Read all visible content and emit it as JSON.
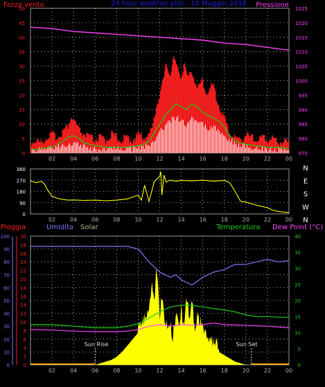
{
  "header": {
    "title": "24 hour weather plot - 10 Maggio 2018",
    "left_label": "Forza vento",
    "right_label": "Pressione"
  },
  "colors": {
    "frame": "#9a9a9a",
    "grid": "#d8d8d8",
    "red": "#ff2020",
    "green": "#18d018",
    "white": "#ffffff",
    "magenta": "#ff40ff",
    "yellow": "#ffff00",
    "blue": "#7a7aff",
    "olive": "#b4b48c",
    "title_blue": "#2020e0",
    "axis_text": "#b0b0b0",
    "sun_text": "#e0e0e0",
    "night_orange": "#ffb000"
  },
  "time_axis": {
    "start_hour": 0,
    "end_hour": 24,
    "tick_labels": [
      "02",
      "04",
      "06",
      "08",
      "10",
      "12",
      "14",
      "16",
      "18",
      "20",
      "22",
      "00"
    ]
  },
  "chart_data": [
    {
      "type": "line",
      "title": "24 hour weather plot - 10 Maggio 2018",
      "x_unit": "hour",
      "left_axis": {
        "label": "Forza vento",
        "ylim": [
          0,
          50
        ],
        "ticks": [
          0,
          5,
          10,
          15,
          20,
          25,
          30,
          35,
          40,
          45,
          50
        ]
      },
      "right_axis": {
        "label": "Pressione",
        "ylim": [
          975,
          1025
        ],
        "ticks": [
          975,
          980,
          985,
          990,
          995,
          1000,
          1005,
          1010,
          1015,
          1020,
          1025
        ]
      },
      "grid": true,
      "series": [
        {
          "name": "Pressione",
          "axis": "right",
          "color": "magenta",
          "x": [
            0,
            2,
            4,
            6,
            8,
            10,
            12,
            14,
            16,
            18,
            20,
            22,
            24
          ],
          "y": [
            1018.5,
            1018.0,
            1017.0,
            1016.5,
            1016.0,
            1015.5,
            1015.0,
            1014.5,
            1014.0,
            1013.0,
            1012.5,
            1011.5,
            1010.5
          ]
        },
        {
          "name": "gust",
          "axis": "left",
          "color": "red",
          "x": [
            0,
            0.5,
            1,
            1.5,
            2,
            2.5,
            3,
            3.5,
            3.8,
            4,
            4.3,
            4.6,
            5,
            5.5,
            6,
            6.5,
            7,
            7.5,
            8,
            8.5,
            9,
            9.5,
            10,
            10.5,
            11,
            11.3,
            11.6,
            12,
            12.3,
            12.6,
            13,
            13.3,
            13.6,
            14,
            14.3,
            14.6,
            15,
            15.3,
            15.6,
            16,
            16.3,
            16.6,
            17,
            17.3,
            17.6,
            18,
            18.3,
            18.6,
            19,
            19.5,
            20,
            20.5,
            21,
            21.5,
            22,
            22.5,
            23,
            23.5,
            24
          ],
          "y": [
            3,
            4,
            3,
            5,
            6,
            5,
            7,
            9,
            12,
            11,
            9,
            7,
            6,
            5,
            4,
            5,
            4,
            6,
            5,
            4,
            5,
            4,
            6,
            5,
            6,
            8,
            14,
            20,
            24,
            30,
            27,
            33,
            29,
            26,
            31,
            25,
            28,
            24,
            22,
            25,
            20,
            22,
            23,
            18,
            15,
            12,
            8,
            6,
            5,
            4,
            6,
            5,
            4,
            5,
            4,
            5,
            3,
            4,
            3
          ]
        },
        {
          "name": "average",
          "axis": "left",
          "color": "green",
          "x": [
            0,
            1,
            2,
            3,
            3.5,
            4,
            4.5,
            5,
            6,
            7,
            8,
            9,
            10,
            10.5,
            11,
            11.5,
            12,
            12.5,
            13,
            13.5,
            14,
            14.5,
            15,
            15.5,
            16,
            16.5,
            17,
            17.5,
            18,
            18.5,
            19,
            20,
            21,
            22,
            23,
            24
          ],
          "y": [
            1,
            1.5,
            2,
            4,
            5.5,
            6,
            5,
            3.5,
            2.5,
            2,
            2,
            2,
            2.5,
            3,
            4,
            7,
            10,
            13,
            15,
            17,
            16,
            15,
            17,
            16,
            14,
            13,
            12,
            11,
            9,
            6,
            4,
            3,
            2.5,
            2,
            2,
            1.5
          ]
        },
        {
          "name": "wind",
          "axis": "left",
          "color": "white",
          "x": [
            0,
            1,
            2,
            3,
            4,
            5,
            6,
            7,
            8,
            9,
            10,
            11,
            11.5,
            12,
            12.5,
            13,
            13.5,
            14,
            14.5,
            15,
            15.5,
            16,
            16.5,
            17,
            17.5,
            18,
            19,
            20,
            21,
            22,
            23,
            24
          ],
          "y": [
            0.5,
            1,
            1.5,
            2.5,
            3,
            2,
            1,
            1,
            1.5,
            1,
            1.5,
            2,
            4,
            7,
            9,
            11,
            12,
            11,
            9,
            12,
            11,
            10,
            8,
            9,
            7,
            5,
            3,
            2,
            1.5,
            1,
            1,
            0.5
          ]
        }
      ]
    },
    {
      "type": "line",
      "left_axis": {
        "ylim": [
          0,
          360
        ],
        "ticks": [
          0,
          90,
          180,
          270,
          360
        ]
      },
      "right_labels": [
        "N",
        "W",
        "S",
        "E",
        "N"
      ],
      "grid": true,
      "series": [
        {
          "name": "direction",
          "color": "yellow",
          "x": [
            0,
            0.5,
            1,
            1.3,
            1.6,
            2,
            2.5,
            3,
            3.5,
            4,
            5,
            6,
            7,
            8,
            9,
            10,
            10.3,
            10.6,
            11,
            11.5,
            12,
            12.1,
            12.2,
            12.4,
            12.6,
            12.8,
            13,
            13.5,
            14,
            15,
            16,
            17,
            18,
            18.5,
            19,
            19.5,
            20,
            21,
            22,
            22.5,
            23,
            23.5,
            24
          ],
          "y": [
            265,
            250,
            260,
            240,
            190,
            140,
            125,
            115,
            110,
            112,
            108,
            110,
            105,
            110,
            120,
            150,
            110,
            230,
            100,
            260,
            300,
            340,
            150,
            310,
            255,
            265,
            270,
            262,
            268,
            265,
            270,
            262,
            268,
            250,
            180,
            100,
            95,
            70,
            50,
            30,
            20,
            15,
            10
          ]
        }
      ]
    },
    {
      "type": "line",
      "legend": [
        "Pioggia",
        "Umidita",
        "Solar",
        "Temperatura",
        "Dew Point (°C)"
      ],
      "axes": {
        "umidita": {
          "ylim": [
            0,
            100
          ],
          "ticks": [
            0,
            10,
            20,
            30,
            40,
            50,
            60,
            70,
            80,
            90,
            100
          ]
        },
        "pioggia": {
          "ylim": [
            0,
            30
          ],
          "ticks": [
            0,
            2,
            4,
            6,
            8,
            10,
            12,
            14,
            16,
            18,
            20,
            22,
            24,
            26,
            28,
            30
          ]
        },
        "temperatura": {
          "ylim": [
            0,
            40
          ],
          "ticks": [
            0,
            5,
            10,
            15,
            20,
            25,
            30,
            35,
            40
          ]
        }
      },
      "grid": true,
      "annotations": [
        {
          "text": "Sun Rise",
          "x": 6
        },
        {
          "text": "Sun Set",
          "x": 20.5
        }
      ],
      "series": [
        {
          "name": "Umidita",
          "color": "blue",
          "x": [
            0,
            2,
            4,
            6,
            8,
            9,
            10,
            11,
            12,
            12.5,
            13,
            13.5,
            14,
            14.5,
            15,
            15.5,
            16,
            17,
            18,
            18.5,
            19,
            20,
            21,
            22,
            23,
            24
          ],
          "y": [
            92,
            92,
            92,
            92,
            92,
            92,
            90,
            80,
            72,
            70,
            68,
            70,
            66,
            64,
            62,
            65,
            68,
            72,
            74,
            76,
            78,
            78,
            80,
            82,
            80,
            81
          ]
        },
        {
          "name": "Temperatura",
          "color": "green",
          "x": [
            0,
            2,
            4,
            6,
            8,
            9,
            10,
            11,
            12,
            13,
            14,
            15,
            16,
            17,
            18,
            19,
            20,
            21,
            22,
            23,
            24
          ],
          "y": [
            12.5,
            12.5,
            12,
            11.5,
            11.5,
            12,
            12.8,
            14.5,
            16.5,
            18,
            18.5,
            18.5,
            18,
            17.5,
            17,
            16.5,
            15.5,
            15,
            15,
            14.8,
            14.8
          ]
        },
        {
          "name": "Dew Point (°C)",
          "color": "magenta",
          "x": [
            0,
            2,
            4,
            6,
            8,
            9,
            10,
            11,
            12,
            13,
            14,
            15,
            16,
            17,
            18,
            20,
            22,
            24
          ],
          "y": [
            11,
            10.8,
            10.5,
            10.3,
            10.3,
            10.5,
            11,
            12,
            12.5,
            12,
            12.5,
            12.3,
            12.5,
            13,
            12.5,
            12.3,
            12,
            11.5
          ]
        },
        {
          "name": "Solar",
          "color": "yellow",
          "axis": "temperatura",
          "x": [
            0,
            6,
            6.5,
            7,
            7.5,
            8,
            8.5,
            9,
            9.5,
            10,
            10.5,
            11,
            11.3,
            11.5,
            11.7,
            12,
            12.2,
            12.5,
            12.8,
            13,
            13.2,
            13.5,
            13.8,
            14,
            14.2,
            14.5,
            14.8,
            15,
            15.2,
            15.5,
            15.8,
            16,
            16.5,
            17,
            17.5,
            18,
            18.5,
            19,
            19.5,
            20,
            24
          ],
          "y": [
            0,
            0,
            0.5,
            1,
            1.5,
            2.5,
            4,
            6,
            8,
            10,
            12,
            14,
            22,
            16,
            28,
            14,
            18,
            12,
            8,
            11,
            6,
            14,
            9,
            16,
            10,
            18,
            12,
            20,
            9,
            13,
            11,
            8,
            6,
            5,
            4,
            3,
            2,
            1,
            0.5,
            0,
            0
          ]
        }
      ]
    }
  ],
  "panel1": {
    "left_ticks": [
      "0",
      "5",
      "10",
      "15",
      "20",
      "25",
      "30",
      "35",
      "40",
      "45",
      "50"
    ],
    "right_ticks": [
      "975",
      "980",
      "985",
      "990",
      "995",
      "1000",
      "1005",
      "1010",
      "1015",
      "1020",
      "1025"
    ]
  },
  "panel2": {
    "left_ticks": [
      "0",
      "90",
      "180",
      "270",
      "360"
    ],
    "right_labels": [
      "N",
      "W",
      "S",
      "E",
      "N"
    ]
  },
  "panel3": {
    "legend": {
      "pioggia": "Pioggia",
      "umidita": "Umidita",
      "solar": "Solar",
      "temperatura": "Temperatura",
      "dew": "Dew Point (°C)"
    },
    "umid_ticks": [
      "0",
      "10",
      "20",
      "30",
      "40",
      "50",
      "60",
      "70",
      "80",
      "90",
      "100"
    ],
    "rain_ticks": [
      "0",
      "2",
      "4",
      "6",
      "8",
      "10",
      "12",
      "14",
      "16",
      "18",
      "20",
      "22",
      "24",
      "26",
      "28",
      "30"
    ],
    "temp_ticks": [
      "0",
      "5",
      "10",
      "15",
      "20",
      "25",
      "30",
      "35",
      "40"
    ],
    "sun_rise": "Sun Rise",
    "sun_set": "Sun Set"
  }
}
